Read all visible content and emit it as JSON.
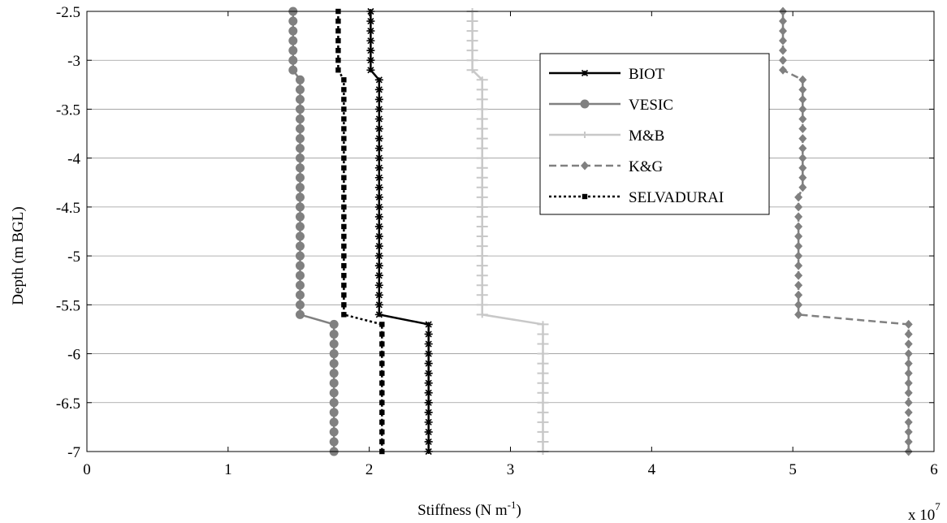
{
  "chart_data": {
    "type": "line",
    "xlabel": "Stiffness (N m",
    "xlabel_sup": "-1",
    "xlabel_close": ")",
    "ylabel": "Depth (m BGL)",
    "x_multiplier": "x 10",
    "x_multiplier_exp": "7",
    "xlim": [
      0,
      6
    ],
    "ylim": [
      -7,
      -2.5
    ],
    "xticks": [
      0,
      1,
      2,
      3,
      4,
      5,
      6
    ],
    "yticks": [
      -2.5,
      -3,
      -3.5,
      -4,
      -4.5,
      -5,
      -5.5,
      -6,
      -6.5,
      -7
    ],
    "xtick_labels": [
      "0",
      "1",
      "2",
      "3",
      "4",
      "5",
      "6"
    ],
    "ytick_labels": [
      "-2.5",
      "-3",
      "-3.5",
      "-4",
      "-4.5",
      "-5",
      "-5.5",
      "-6",
      "-6.5",
      "-7"
    ],
    "grid": "horizontal",
    "legend_position": "top-right",
    "series": [
      {
        "name": "BIOT",
        "color": "#000000",
        "line": "solid",
        "marker": "star",
        "points": [
          [
            2.01,
            -2.5
          ],
          [
            2.01,
            -3.1
          ],
          [
            2.07,
            -3.2
          ],
          [
            2.07,
            -5.6
          ],
          [
            2.42,
            -5.7
          ],
          [
            2.42,
            -7.0
          ]
        ]
      },
      {
        "name": "VESIC",
        "color": "#808080",
        "line": "solid",
        "marker": "circle",
        "points": [
          [
            1.46,
            -2.5
          ],
          [
            1.46,
            -3.1
          ],
          [
            1.51,
            -3.2
          ],
          [
            1.51,
            -5.6
          ],
          [
            1.75,
            -5.7
          ],
          [
            1.75,
            -7.0
          ]
        ]
      },
      {
        "name": "M&B",
        "color": "#c8c8c8",
        "line": "solid",
        "marker": "plus",
        "points": [
          [
            2.73,
            -2.5
          ],
          [
            2.73,
            -3.1
          ],
          [
            2.8,
            -3.2
          ],
          [
            2.8,
            -5.6
          ],
          [
            3.23,
            -5.7
          ],
          [
            3.23,
            -7.0
          ]
        ]
      },
      {
        "name": "K&G",
        "color": "#808080",
        "line": "dashed",
        "marker": "diamond",
        "points": [
          [
            4.93,
            -2.5
          ],
          [
            4.93,
            -3.1
          ],
          [
            5.07,
            -3.2
          ],
          [
            5.07,
            -4.3
          ],
          [
            5.04,
            -4.4
          ],
          [
            5.04,
            -5.6
          ],
          [
            5.82,
            -5.7
          ],
          [
            5.82,
            -7.0
          ]
        ]
      },
      {
        "name": "SELVADURAI",
        "color": "#000000",
        "line": "dotted",
        "marker": "square",
        "points": [
          [
            1.78,
            -2.5
          ],
          [
            1.78,
            -3.1
          ],
          [
            1.82,
            -3.2
          ],
          [
            1.82,
            -5.6
          ],
          [
            2.09,
            -5.7
          ],
          [
            2.09,
            -7.0
          ]
        ]
      }
    ]
  }
}
